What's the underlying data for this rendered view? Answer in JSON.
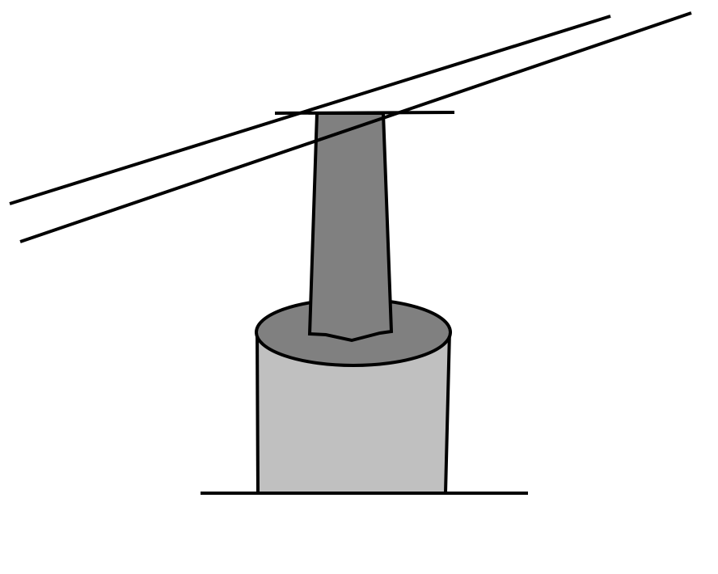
{
  "diagram": {
    "colors": {
      "background": "#ffffff",
      "stroke": "#000000",
      "pillar_fill": "#c0c0c0",
      "pillar_top_fill": "#808080",
      "column_fill": "#808080"
    },
    "elements": [
      "ground-line",
      "cylindrical-pillar",
      "pillar-top-ellipse",
      "tapered-column",
      "top-cap-line",
      "upper-inclined-line",
      "lower-inclined-line"
    ]
  }
}
